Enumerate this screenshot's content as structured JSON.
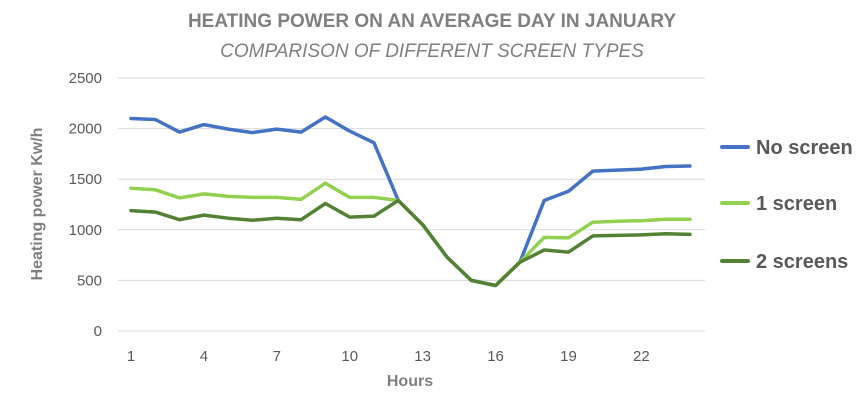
{
  "chart_data": {
    "type": "line",
    "title": "HEATING POWER  ON AN AVERAGE DAY IN JANUARY",
    "subtitle": "COMPARISON OF DIFFERENT SCREEN TYPES",
    "xlabel": "Hours",
    "ylabel": "Heating power Kw/h",
    "x": [
      1,
      2,
      3,
      4,
      5,
      6,
      7,
      8,
      9,
      10,
      11,
      12,
      13,
      14,
      15,
      16,
      17,
      18,
      19,
      20,
      21,
      22,
      23,
      24
    ],
    "x_tick_labels": [
      "1",
      "4",
      "7",
      "10",
      "13",
      "16",
      "19",
      "22"
    ],
    "y_tick_labels": [
      "0",
      "500",
      "1000",
      "1500",
      "2000",
      "2500"
    ],
    "ylim": [
      0,
      2500
    ],
    "grid": true,
    "legend_position": "right",
    "series": [
      {
        "name": "No screen",
        "color": "#4472c4",
        "values": [
          2100,
          2090,
          1965,
          2040,
          1995,
          1960,
          1995,
          1965,
          2115,
          1975,
          1860,
          1290,
          1050,
          730,
          500,
          450,
          680,
          1290,
          1380,
          1580,
          1590,
          1600,
          1625,
          1630
        ]
      },
      {
        "name": "1 screen",
        "color": "#92d050",
        "values": [
          1410,
          1395,
          1315,
          1355,
          1330,
          1320,
          1320,
          1300,
          1460,
          1320,
          1320,
          1290,
          1050,
          730,
          500,
          450,
          680,
          925,
          920,
          1075,
          1085,
          1090,
          1105,
          1105
        ]
      },
      {
        "name": "2 screens",
        "color": "#548235",
        "values": [
          1190,
          1175,
          1100,
          1145,
          1115,
          1095,
          1115,
          1100,
          1260,
          1125,
          1135,
          1290,
          1050,
          730,
          500,
          450,
          680,
          800,
          780,
          940,
          945,
          950,
          960,
          955
        ]
      }
    ]
  }
}
